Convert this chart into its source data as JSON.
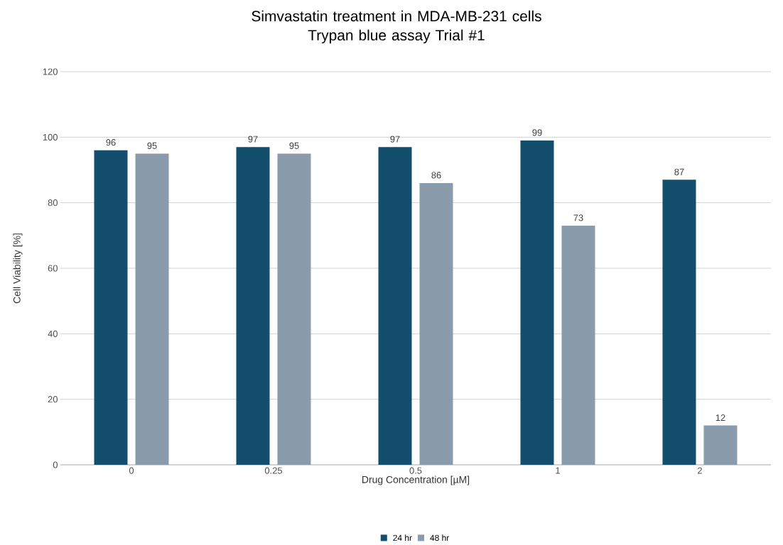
{
  "chart_data": {
    "type": "bar",
    "title": "Simvastatin treatment in MDA-MB-231 cells\nTrypan blue assay Trial #1",
    "xlabel": "Drug Concentration [µM]",
    "ylabel": "Cell Viability [%]",
    "categories": [
      "0",
      "0.25",
      "0.5",
      "1",
      "2"
    ],
    "series": [
      {
        "name": "24 hr",
        "color": "#134f6c",
        "values": [
          96,
          97,
          97,
          99,
          87
        ]
      },
      {
        "name": "48 hr",
        "color": "#8a9bab",
        "values": [
          95,
          95,
          86,
          73,
          12
        ]
      }
    ],
    "ylim": [
      0,
      120
    ],
    "yticks": [
      0,
      20,
      40,
      60,
      80,
      100,
      120
    ],
    "grid": "y",
    "legend": "bottom",
    "data_labels": true
  }
}
